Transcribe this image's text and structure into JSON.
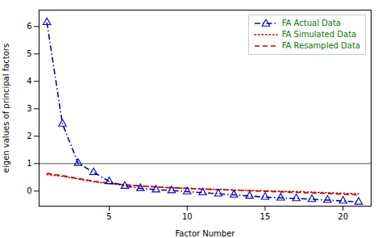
{
  "chart_data": {
    "type": "line",
    "title": "",
    "xlabel": "Factor Number",
    "ylabel": "eigen values of principal factors",
    "x": [
      1,
      2,
      3,
      4,
      5,
      6,
      7,
      8,
      9,
      10,
      11,
      12,
      13,
      14,
      15,
      16,
      17,
      18,
      19,
      20,
      21
    ],
    "series": [
      {
        "name": "FA  Actual Data",
        "color": "#0000bb",
        "line_style": "dashdot",
        "marker": "triangle",
        "values": [
          6.15,
          2.45,
          1.02,
          0.68,
          0.35,
          0.18,
          0.1,
          0.05,
          0.02,
          -0.02,
          -0.06,
          -0.1,
          -0.14,
          -0.18,
          -0.22,
          -0.25,
          -0.27,
          -0.3,
          -0.33,
          -0.36,
          -0.4
        ]
      },
      {
        "name": "FA  Simulated Data",
        "color": "#cc0000",
        "line_style": "dotted",
        "marker": "none",
        "values": [
          0.6,
          0.54,
          0.44,
          0.34,
          0.27,
          0.22,
          0.18,
          0.15,
          0.12,
          0.1,
          0.08,
          0.06,
          0.04,
          0.02,
          0.01,
          -0.01,
          -0.02,
          -0.04,
          -0.06,
          -0.08,
          -0.1
        ]
      },
      {
        "name": "FA  Resampled Data",
        "color": "#cc0000",
        "line_style": "dashed",
        "marker": "none",
        "values": [
          0.65,
          0.56,
          0.46,
          0.36,
          0.29,
          0.23,
          0.19,
          0.15,
          0.12,
          0.1,
          0.07,
          0.05,
          0.03,
          0.01,
          -0.01,
          -0.03,
          -0.05,
          -0.07,
          -0.09,
          -0.12,
          -0.14
        ]
      }
    ],
    "hline": {
      "y": 1.0,
      "color": "#555555"
    },
    "xlim": [
      0.5,
      21.8
    ],
    "ylim": [
      -0.55,
      6.6
    ],
    "xticks": [
      5,
      10,
      15,
      20
    ],
    "yticks": [
      0,
      1,
      2,
      3,
      4,
      5,
      6
    ],
    "grid": false,
    "legend": "upper right",
    "legend_text_color": "#008000"
  }
}
